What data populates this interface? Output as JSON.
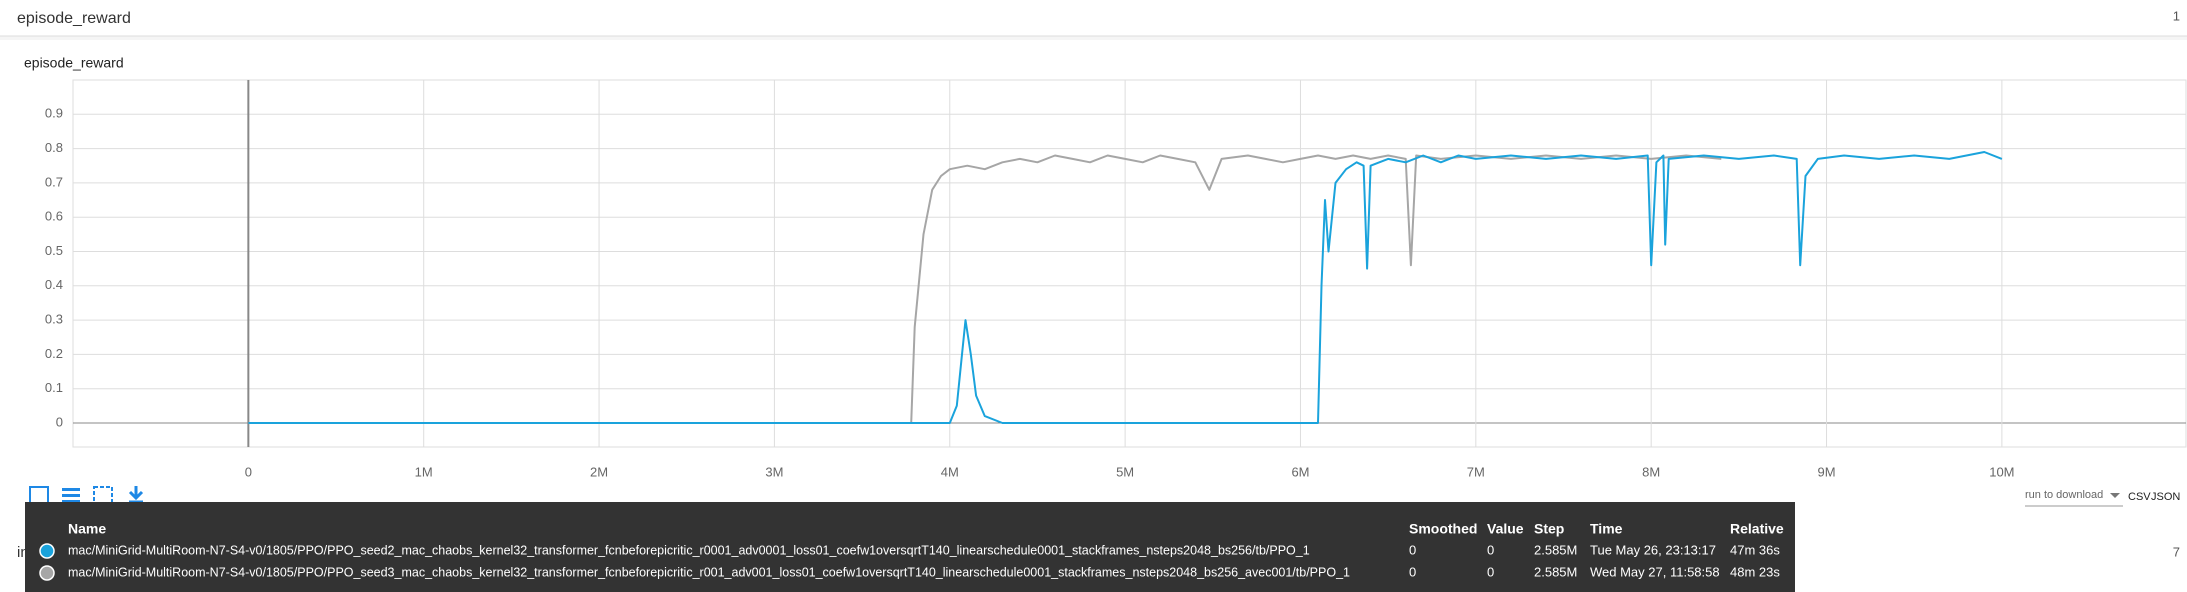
{
  "header": {
    "title": "episode_reward",
    "count": "1"
  },
  "chart_data": {
    "type": "line",
    "title": "episode_reward",
    "xlim": [
      -1000000,
      11050000
    ],
    "ylim": [
      -0.07,
      1.0
    ],
    "xticks": [
      0,
      {
        "value": 1000000,
        "label": "1M"
      },
      {
        "value": 2000000,
        "label": "2M"
      },
      {
        "value": 3000000,
        "label": "3M"
      },
      {
        "value": 4000000,
        "label": "4M"
      },
      {
        "value": 5000000,
        "label": "5M"
      },
      {
        "value": 6000000,
        "label": "6M"
      },
      {
        "value": 7000000,
        "label": "7M"
      },
      {
        "value": 8000000,
        "label": "8M"
      },
      {
        "value": 9000000,
        "label": "9M"
      },
      {
        "value": 10000000,
        "label": "10M"
      }
    ],
    "yticks": [
      0,
      0.1,
      0.2,
      0.3,
      0.4,
      0.5,
      0.6,
      0.7,
      0.8,
      0.9
    ],
    "grid": true,
    "series": [
      {
        "name": "mac/MiniGrid-MultiRoom-N7-S4-v0/1805/PPO/PPO_seed2_mac_chaobs_kernel32_transformer_fcnbeforepicritic_r0001_adv0001_loss01_coefw1oversqrtT140_linearschedule0001_stackframes_nsteps2048_bs256/tb/PPO_1",
        "color": "#1aa3dc",
        "x": [
          0,
          1000000,
          2000000,
          3000000,
          3900000,
          4000000,
          4040000,
          4070000,
          4090000,
          4120000,
          4150000,
          4200000,
          4300000,
          5000000,
          6100000,
          6120000,
          6140000,
          6160000,
          6200000,
          6260000,
          6320000,
          6360000,
          6380000,
          6400000,
          6500000,
          6600000,
          6700000,
          6800000,
          6900000,
          7000000,
          7200000,
          7400000,
          7600000,
          7800000,
          7980000,
          8000000,
          8030000,
          8070000,
          8080000,
          8100000,
          8300000,
          8500000,
          8700000,
          8830000,
          8850000,
          8880000,
          8950000,
          9100000,
          9300000,
          9500000,
          9700000,
          9900000,
          10000000
        ],
        "values": [
          0,
          0,
          0,
          0,
          0,
          0,
          0.05,
          0.2,
          0.3,
          0.2,
          0.08,
          0.02,
          0,
          0,
          0,
          0.4,
          0.65,
          0.5,
          0.7,
          0.74,
          0.76,
          0.75,
          0.45,
          0.75,
          0.77,
          0.76,
          0.78,
          0.76,
          0.78,
          0.77,
          0.78,
          0.77,
          0.78,
          0.77,
          0.78,
          0.46,
          0.76,
          0.78,
          0.52,
          0.77,
          0.78,
          0.77,
          0.78,
          0.77,
          0.46,
          0.72,
          0.77,
          0.78,
          0.77,
          0.78,
          0.77,
          0.79,
          0.77
        ]
      },
      {
        "name": "mac/MiniGrid-MultiRoom-N7-S4-v0/1805/PPO/PPO_seed3_mac_chaobs_kernel32_transformer_fcnbeforepicritic_r001_adv001_loss01_coefw1oversqrtT140_linearschedule0001_stackframes_nsteps2048_bs256_avec001/tb/PPO_1",
        "color": "#a6a6a6",
        "x": [
          0,
          1000000,
          2000000,
          3000000,
          3780000,
          3800000,
          3850000,
          3900000,
          3950000,
          4000000,
          4100000,
          4200000,
          4300000,
          4400000,
          4500000,
          4600000,
          4700000,
          4800000,
          4900000,
          5000000,
          5100000,
          5200000,
          5300000,
          5400000,
          5480000,
          5550000,
          5700000,
          5800000,
          5900000,
          6000000,
          6100000,
          6200000,
          6300000,
          6400000,
          6500000,
          6600000,
          6630000,
          6660000,
          6800000,
          7000000,
          7200000,
          7400000,
          7600000,
          7800000,
          8000000,
          8200000,
          8400000
        ],
        "values": [
          0,
          0,
          0,
          0,
          0,
          0.28,
          0.55,
          0.68,
          0.72,
          0.74,
          0.75,
          0.74,
          0.76,
          0.77,
          0.76,
          0.78,
          0.77,
          0.76,
          0.78,
          0.77,
          0.76,
          0.78,
          0.77,
          0.76,
          0.68,
          0.77,
          0.78,
          0.77,
          0.76,
          0.77,
          0.78,
          0.77,
          0.78,
          0.77,
          0.78,
          0.77,
          0.46,
          0.78,
          0.77,
          0.78,
          0.77,
          0.78,
          0.77,
          0.78,
          0.77,
          0.78,
          0.77
        ]
      }
    ]
  },
  "toolbar": {
    "download_label": "run to download",
    "csv": "CSV",
    "json": "JSON"
  },
  "tooltip": {
    "columns": [
      "Name",
      "Smoothed",
      "Value",
      "Step",
      "Time",
      "Relative"
    ],
    "rows": [
      {
        "smoothed": 0,
        "value": 0,
        "step": "2.585M",
        "time": "Tue May 26, 23:13:17",
        "relative": "47m 36s"
      },
      {
        "smoothed": 0,
        "value": 0,
        "step": "2.585M",
        "time": "Wed May 27, 11:58:58",
        "relative": "48m 23s"
      }
    ]
  },
  "next_panel": {
    "title": "inp",
    "count": "7"
  }
}
